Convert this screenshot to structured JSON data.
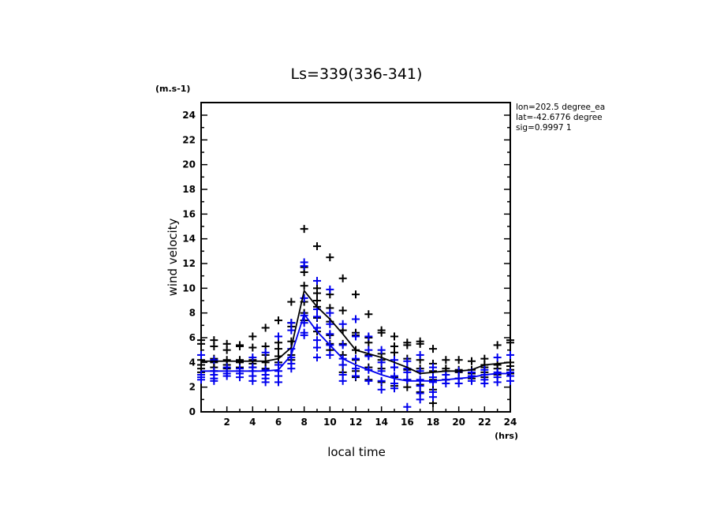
{
  "chart_data": {
    "type": "scatter",
    "title": "Ls=339(336-341)",
    "xlabel": "local time",
    "ylabel": "wind velocity",
    "x_unit": "(hrs)",
    "y_unit": "(m.s-1)",
    "xlim": [
      0,
      24
    ],
    "ylim": [
      0,
      25
    ],
    "x_ticks": [
      2,
      4,
      6,
      8,
      10,
      12,
      14,
      16,
      18,
      20,
      22,
      24
    ],
    "x_tick_labels": [
      "2",
      "4",
      "6",
      "8",
      "10",
      "12",
      "14",
      "16",
      "18",
      "20",
      "22",
      "24"
    ],
    "y_ticks": [
      0,
      2,
      4,
      6,
      8,
      10,
      12,
      14,
      16,
      18,
      20,
      22,
      24
    ],
    "y_tick_labels": [
      "0",
      "2",
      "4",
      "6",
      "8",
      "10",
      "12",
      "14",
      "16",
      "18",
      "20",
      "22",
      "24"
    ],
    "grid": false,
    "info": [
      "lon=202.5 degree_ea",
      "lat=-42.6776 degree",
      "sig=0.9997 1"
    ],
    "colors": {
      "series_black": "#000000",
      "series_blue": "#0000ee"
    },
    "series": [
      {
        "name": "black",
        "color": "#000000",
        "points": [
          [
            0,
            5.8
          ],
          [
            0,
            5.5
          ],
          [
            0,
            4.2
          ],
          [
            0,
            3.8
          ],
          [
            0,
            3.5
          ],
          [
            0,
            3.2
          ],
          [
            0,
            3.0
          ],
          [
            1,
            5.8
          ],
          [
            1,
            5.3
          ],
          [
            1,
            4.3
          ],
          [
            1,
            4.0
          ],
          [
            1,
            3.6
          ],
          [
            1,
            3.3
          ],
          [
            2,
            5.5
          ],
          [
            2,
            5.0
          ],
          [
            2,
            4.2
          ],
          [
            2,
            3.8
          ],
          [
            2,
            3.5
          ],
          [
            3,
            5.4
          ],
          [
            3,
            5.3
          ],
          [
            3,
            4.2
          ],
          [
            3,
            4.0
          ],
          [
            3,
            3.6
          ],
          [
            4,
            6.1
          ],
          [
            4,
            5.2
          ],
          [
            4,
            4.2
          ],
          [
            4,
            3.9
          ],
          [
            4,
            3.6
          ],
          [
            5,
            6.8
          ],
          [
            5,
            5.3
          ],
          [
            5,
            4.6
          ],
          [
            5,
            4.0
          ],
          [
            5,
            3.5
          ],
          [
            6,
            7.4
          ],
          [
            6,
            5.6
          ],
          [
            6,
            5.1
          ],
          [
            6,
            4.5
          ],
          [
            6,
            4.0
          ],
          [
            7,
            8.9
          ],
          [
            7,
            7.2
          ],
          [
            7,
            6.9
          ],
          [
            7,
            5.7
          ],
          [
            7,
            4.6
          ],
          [
            7,
            4.2
          ],
          [
            8,
            14.8
          ],
          [
            8,
            11.7
          ],
          [
            8,
            11.3
          ],
          [
            8,
            10.2
          ],
          [
            8,
            8.9
          ],
          [
            8,
            8.0
          ],
          [
            8,
            7.4
          ],
          [
            9,
            13.4
          ],
          [
            9,
            10.0
          ],
          [
            9,
            9.6
          ],
          [
            9,
            9.0
          ],
          [
            9,
            8.5
          ],
          [
            9,
            7.6
          ],
          [
            9,
            6.8
          ],
          [
            9,
            6.5
          ],
          [
            10,
            12.5
          ],
          [
            10,
            9.5
          ],
          [
            10,
            8.4
          ],
          [
            10,
            7.3
          ],
          [
            10,
            6.2
          ],
          [
            10,
            5.5
          ],
          [
            10,
            5.0
          ],
          [
            11,
            10.8
          ],
          [
            11,
            8.2
          ],
          [
            11,
            6.6
          ],
          [
            11,
            5.5
          ],
          [
            11,
            4.6
          ],
          [
            11,
            3.8
          ],
          [
            11,
            3.2
          ],
          [
            12,
            9.5
          ],
          [
            12,
            6.4
          ],
          [
            12,
            6.2
          ],
          [
            12,
            5.0
          ],
          [
            12,
            4.2
          ],
          [
            12,
            3.3
          ],
          [
            12,
            2.8
          ],
          [
            13,
            7.9
          ],
          [
            13,
            6.0
          ],
          [
            13,
            5.6
          ],
          [
            13,
            4.6
          ],
          [
            13,
            3.6
          ],
          [
            13,
            2.6
          ],
          [
            14,
            6.6
          ],
          [
            14,
            6.4
          ],
          [
            14,
            4.7
          ],
          [
            14,
            4.2
          ],
          [
            14,
            3.5
          ],
          [
            14,
            2.4
          ],
          [
            15,
            6.1
          ],
          [
            15,
            5.3
          ],
          [
            15,
            4.8
          ],
          [
            15,
            3.6
          ],
          [
            15,
            2.8
          ],
          [
            15,
            2.1
          ],
          [
            16,
            5.6
          ],
          [
            16,
            5.4
          ],
          [
            16,
            4.3
          ],
          [
            16,
            3.4
          ],
          [
            16,
            2.6
          ],
          [
            16,
            2.0
          ],
          [
            17,
            5.7
          ],
          [
            17,
            5.5
          ],
          [
            17,
            4.2
          ],
          [
            17,
            3.5
          ],
          [
            17,
            2.2
          ],
          [
            17,
            1.6
          ],
          [
            18,
            5.1
          ],
          [
            18,
            3.9
          ],
          [
            18,
            3.3
          ],
          [
            18,
            2.6
          ],
          [
            18,
            1.8
          ],
          [
            18,
            0.7
          ],
          [
            19,
            4.2
          ],
          [
            19,
            3.5
          ],
          [
            19,
            3.3
          ],
          [
            19,
            2.6
          ],
          [
            20,
            4.2
          ],
          [
            20,
            3.4
          ],
          [
            20,
            3.2
          ],
          [
            20,
            2.7
          ],
          [
            21,
            4.1
          ],
          [
            21,
            3.4
          ],
          [
            21,
            3.1
          ],
          [
            21,
            2.7
          ],
          [
            22,
            4.3
          ],
          [
            22,
            3.8
          ],
          [
            22,
            3.6
          ],
          [
            22,
            3.2
          ],
          [
            22,
            2.8
          ],
          [
            23,
            5.4
          ],
          [
            23,
            3.8
          ],
          [
            23,
            3.5
          ],
          [
            23,
            3.0
          ],
          [
            24,
            5.8
          ],
          [
            24,
            5.6
          ],
          [
            24,
            4.0
          ],
          [
            24,
            3.7
          ],
          [
            24,
            3.4
          ],
          [
            24,
            3.1
          ]
        ]
      },
      {
        "name": "blue",
        "color": "#0000ee",
        "points": [
          [
            0,
            4.6
          ],
          [
            0,
            3.0
          ],
          [
            0,
            2.8
          ],
          [
            0,
            2.6
          ],
          [
            1,
            4.2
          ],
          [
            1,
            3.3
          ],
          [
            1,
            3.0
          ],
          [
            1,
            2.7
          ],
          [
            1,
            2.5
          ],
          [
            2,
            3.6
          ],
          [
            2,
            3.1
          ],
          [
            2,
            2.9
          ],
          [
            3,
            3.5
          ],
          [
            3,
            3.3
          ],
          [
            3,
            3.1
          ],
          [
            3,
            2.8
          ],
          [
            4,
            4.4
          ],
          [
            4,
            3.6
          ],
          [
            4,
            3.3
          ],
          [
            4,
            2.9
          ],
          [
            4,
            2.5
          ],
          [
            5,
            4.8
          ],
          [
            5,
            3.4
          ],
          [
            5,
            3.0
          ],
          [
            5,
            2.7
          ],
          [
            5,
            2.4
          ],
          [
            6,
            6.1
          ],
          [
            6,
            3.8
          ],
          [
            6,
            3.3
          ],
          [
            6,
            2.9
          ],
          [
            6,
            2.4
          ],
          [
            7,
            7.2
          ],
          [
            7,
            6.6
          ],
          [
            7,
            5.1
          ],
          [
            7,
            4.4
          ],
          [
            7,
            3.9
          ],
          [
            7,
            3.5
          ],
          [
            8,
            12.1
          ],
          [
            8,
            11.8
          ],
          [
            8,
            9.2
          ],
          [
            8,
            7.8
          ],
          [
            8,
            7.2
          ],
          [
            8,
            6.4
          ],
          [
            8,
            6.2
          ],
          [
            9,
            10.6
          ],
          [
            9,
            8.3
          ],
          [
            9,
            7.7
          ],
          [
            9,
            6.8
          ],
          [
            9,
            5.8
          ],
          [
            9,
            5.2
          ],
          [
            9,
            4.4
          ],
          [
            10,
            9.9
          ],
          [
            10,
            8.0
          ],
          [
            10,
            7.1
          ],
          [
            10,
            6.3
          ],
          [
            10,
            5.4
          ],
          [
            10,
            4.6
          ],
          [
            11,
            7.1
          ],
          [
            11,
            5.4
          ],
          [
            11,
            4.3
          ],
          [
            11,
            3.8
          ],
          [
            11,
            3.0
          ],
          [
            11,
            2.5
          ],
          [
            12,
            7.5
          ],
          [
            12,
            6.1
          ],
          [
            12,
            4.3
          ],
          [
            12,
            3.5
          ],
          [
            12,
            2.9
          ],
          [
            13,
            6.1
          ],
          [
            13,
            5.0
          ],
          [
            13,
            4.5
          ],
          [
            13,
            3.4
          ],
          [
            13,
            2.5
          ],
          [
            14,
            5.0
          ],
          [
            14,
            4.0
          ],
          [
            14,
            3.3
          ],
          [
            14,
            2.5
          ],
          [
            14,
            1.8
          ],
          [
            15,
            4.2
          ],
          [
            15,
            3.6
          ],
          [
            15,
            2.9
          ],
          [
            15,
            2.3
          ],
          [
            15,
            1.9
          ],
          [
            16,
            4.1
          ],
          [
            16,
            3.5
          ],
          [
            16,
            3.2
          ],
          [
            16,
            2.6
          ],
          [
            16,
            0.4
          ],
          [
            17,
            4.6
          ],
          [
            17,
            3.3
          ],
          [
            17,
            2.6
          ],
          [
            17,
            2.1
          ],
          [
            17,
            1.5
          ],
          [
            17,
            1.0
          ],
          [
            18,
            3.6
          ],
          [
            18,
            2.8
          ],
          [
            18,
            2.4
          ],
          [
            18,
            1.6
          ],
          [
            18,
            1.2
          ],
          [
            19,
            3.0
          ],
          [
            19,
            2.6
          ],
          [
            19,
            2.3
          ],
          [
            20,
            3.3
          ],
          [
            20,
            2.7
          ],
          [
            20,
            2.3
          ],
          [
            21,
            3.2
          ],
          [
            21,
            2.9
          ],
          [
            21,
            2.5
          ],
          [
            22,
            3.4
          ],
          [
            22,
            3.0
          ],
          [
            22,
            2.6
          ],
          [
            22,
            2.3
          ],
          [
            23,
            4.4
          ],
          [
            23,
            3.2
          ],
          [
            23,
            2.8
          ],
          [
            23,
            2.4
          ],
          [
            24,
            4.6
          ],
          [
            24,
            3.2
          ],
          [
            24,
            2.9
          ],
          [
            24,
            2.5
          ]
        ]
      }
    ],
    "mean_lines": [
      {
        "name": "black-mean",
        "color": "#000000",
        "x": [
          0,
          1,
          2,
          3,
          4,
          5,
          6,
          7,
          8,
          9,
          10,
          11,
          12,
          13,
          14,
          15,
          16,
          17,
          18,
          19,
          20,
          21,
          22,
          23,
          24
        ],
        "y": [
          4.1,
          4.1,
          4.1,
          4.1,
          4.1,
          4.1,
          4.3,
          5.2,
          9.8,
          8.5,
          7.5,
          6.3,
          5.0,
          4.7,
          4.4,
          4.0,
          3.6,
          3.1,
          3.2,
          3.3,
          3.3,
          3.4,
          3.8,
          3.9,
          4.0
        ]
      },
      {
        "name": "blue-mean",
        "color": "#0000ee",
        "x": [
          0,
          1,
          2,
          3,
          4,
          5,
          6,
          7,
          8,
          9,
          10,
          11,
          12,
          13,
          14,
          15,
          16,
          17,
          18,
          19,
          20,
          21,
          22,
          23,
          24
        ],
        "y": [
          3.3,
          3.3,
          3.3,
          3.3,
          3.3,
          3.3,
          3.4,
          4.6,
          7.9,
          6.5,
          5.4,
          4.3,
          3.8,
          3.4,
          3.0,
          2.7,
          2.5,
          2.5,
          2.5,
          2.6,
          2.7,
          2.8,
          3.0,
          3.1,
          3.1
        ]
      }
    ]
  }
}
